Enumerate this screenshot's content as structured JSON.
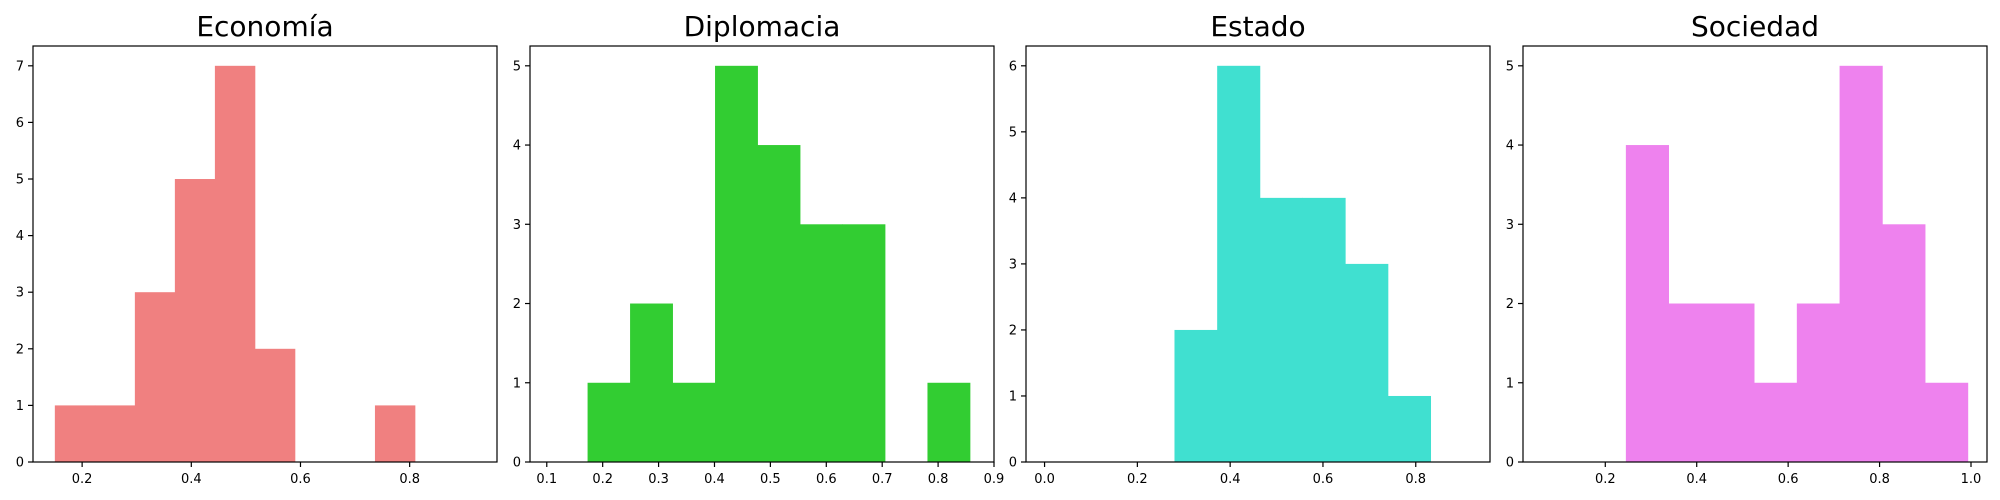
{
  "chart_data": [
    {
      "type": "bar",
      "title": "Economía",
      "xlabel": "",
      "ylabel": "",
      "color": "#f08080",
      "xlim": [
        0.11,
        0.96
      ],
      "ylim": [
        0,
        7.35
      ],
      "xticks": [
        0.2,
        0.4,
        0.6,
        0.8
      ],
      "xtick_labels": [
        "0.2",
        "0.4",
        "0.6",
        "0.8"
      ],
      "yticks": [
        0,
        1,
        2,
        3,
        4,
        5,
        6,
        7
      ],
      "ytick_labels": [
        "0",
        "1",
        "2",
        "3",
        "4",
        "5",
        "6",
        "7"
      ],
      "bin_edges": [
        0.15,
        0.2233,
        0.2966,
        0.3699,
        0.4432,
        0.5165,
        0.5898,
        0.6631,
        0.7364,
        0.8097,
        0.883
      ],
      "counts": [
        1,
        1,
        3,
        5,
        7,
        2,
        0,
        0,
        1,
        0
      ],
      "grid": false
    },
    {
      "type": "bar",
      "title": "Diplomacia",
      "xlabel": "",
      "ylabel": "",
      "color": "#32cd32",
      "xlim": [
        0.07,
        0.9
      ],
      "ylim": [
        0,
        5.25
      ],
      "xticks": [
        0.1,
        0.2,
        0.3,
        0.4,
        0.5,
        0.6,
        0.7,
        0.8,
        0.9
      ],
      "xtick_labels": [
        "0.1",
        "0.2",
        "0.3",
        "0.4",
        "0.5",
        "0.6",
        "0.7",
        "0.8",
        "0.9"
      ],
      "yticks": [
        0,
        1,
        2,
        3,
        4,
        5
      ],
      "ytick_labels": [
        "0",
        "1",
        "2",
        "3",
        "4",
        "5"
      ],
      "bin_edges": [
        0.173,
        0.249,
        0.325,
        0.401,
        0.477,
        0.553,
        0.629,
        0.705,
        0.781,
        0.857
      ],
      "counts": [
        1,
        2,
        1,
        5,
        4,
        3,
        3,
        0,
        1
      ],
      "grid": false
    },
    {
      "type": "bar",
      "title": "Estado",
      "xlabel": "",
      "ylabel": "",
      "color": "#40e0d0",
      "xlim": [
        -0.04,
        0.96
      ],
      "ylim": [
        0,
        6.3
      ],
      "xticks": [
        0.0,
        0.2,
        0.4,
        0.6,
        0.8
      ],
      "xtick_labels": [
        "0.0",
        "0.2",
        "0.4",
        "0.6",
        "0.8"
      ],
      "yticks": [
        0,
        1,
        2,
        3,
        4,
        5,
        6
      ],
      "ytick_labels": [
        "0",
        "1",
        "2",
        "3",
        "4",
        "5",
        "6"
      ],
      "bin_edges": [
        0.28,
        0.372,
        0.464,
        0.556,
        0.648,
        0.74,
        0.832
      ],
      "counts": [
        2,
        6,
        4,
        4,
        3,
        1
      ],
      "grid": false
    },
    {
      "type": "bar",
      "title": "Sociedad",
      "xlabel": "",
      "ylabel": "",
      "color": "#ee82ee",
      "xlim": [
        0.02,
        1.035
      ],
      "ylim": [
        0,
        5.25
      ],
      "xticks": [
        0.2,
        0.4,
        0.6,
        0.8,
        1.0
      ],
      "xtick_labels": [
        "0.2",
        "0.4",
        "0.6",
        "0.8",
        "1.0"
      ],
      "yticks": [
        0,
        1,
        2,
        3,
        4,
        5
      ],
      "ytick_labels": [
        "0",
        "1",
        "2",
        "3",
        "4",
        "5"
      ],
      "bin_edges": [
        0.245,
        0.3385,
        0.432,
        0.5255,
        0.619,
        0.7125,
        0.806,
        0.8995,
        0.993
      ],
      "counts": [
        4,
        2,
        2,
        1,
        2,
        5,
        3,
        1
      ],
      "grid": false
    }
  ]
}
